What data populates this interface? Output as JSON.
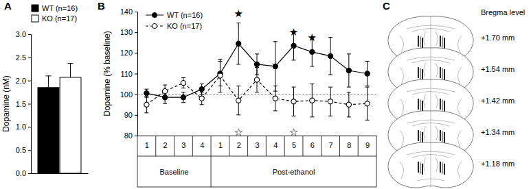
{
  "chart_data": [
    {
      "type": "bar",
      "title": "A",
      "categories": [
        null
      ],
      "series": [
        {
          "name": "WT (n=16)",
          "color": "#000000",
          "values": [
            1.85
          ],
          "error": [
            0.25
          ]
        },
        {
          "name": "KO (n=17)",
          "color": "#ffffff",
          "values": [
            2.07
          ],
          "error": [
            0.3
          ]
        }
      ],
      "y_label": "Dopamine (nM)",
      "ylim": [
        0,
        3
      ],
      "yticks": [
        {
          "value": 0,
          "label": "0.0"
        },
        {
          "value": 0.5,
          "label": "0.5"
        },
        {
          "value": 1,
          "label": "1.0"
        },
        {
          "value": 1.5,
          "label": "1.5"
        },
        {
          "value": 2,
          "label": "2.0"
        },
        {
          "value": 2.5,
          "label": "2.5"
        },
        {
          "value": 3,
          "label": "3.0"
        }
      ],
      "legend": "upper left"
    },
    {
      "type": "line",
      "title": "B",
      "categories": [
        "1",
        "2",
        "3",
        "4",
        "1",
        "2",
        "3",
        "4",
        "5",
        "6",
        "7",
        "8",
        "9"
      ],
      "groups": [
        {
          "label": "Baseline",
          "count": 4
        },
        {
          "label": "Post-ethanol",
          "count": 9
        }
      ],
      "series": [
        {
          "name": "WT (n=16)",
          "color": "#000000",
          "marker": "filled-circle",
          "line_style": "solid",
          "values": [
            100.5,
            98.5,
            98.5,
            102.5,
            110,
            124.5,
            114.5,
            113.5,
            123.5,
            120.5,
            118.5,
            111.5,
            110
          ],
          "error": [
            2,
            3,
            2.5,
            2.5,
            6,
            10,
            5,
            12,
            7,
            7,
            9,
            8,
            6
          ]
        },
        {
          "name": "KO (n=17)",
          "color": "#000000",
          "marker": "open-circle",
          "line_style": "dashed",
          "values": [
            95,
            101.5,
            105.5,
            98,
            109,
            97,
            107,
            98,
            96.5,
            97,
            96.5,
            95,
            95.5
          ],
          "error": [
            4,
            3,
            2.5,
            3,
            8,
            7,
            6,
            6,
            7,
            8,
            7,
            6,
            8
          ]
        }
      ],
      "y_label": "Dopamine (% baseline)",
      "ylim": [
        80,
        140
      ],
      "yticks": [
        80,
        90,
        100,
        110,
        120,
        130,
        140
      ],
      "reference_line": 100,
      "annotations": [
        {
          "text": "★",
          "index": 5,
          "y": 139
        },
        {
          "text": "★",
          "index": 8,
          "y": 130
        },
        {
          "text": "★",
          "index": 9,
          "y": 127.5
        },
        {
          "text": "☆",
          "index": 5,
          "y": 81.5
        },
        {
          "text": "☆",
          "index": 8,
          "y": 81.5
        }
      ],
      "legend": "upper left"
    }
  ],
  "panel_c": {
    "label": "C",
    "title": "Bregma level",
    "levels": [
      "+1.70 mm",
      "+1.54 mm",
      "+1.42 mm",
      "+1.34 mm",
      "+1.18 mm"
    ]
  }
}
